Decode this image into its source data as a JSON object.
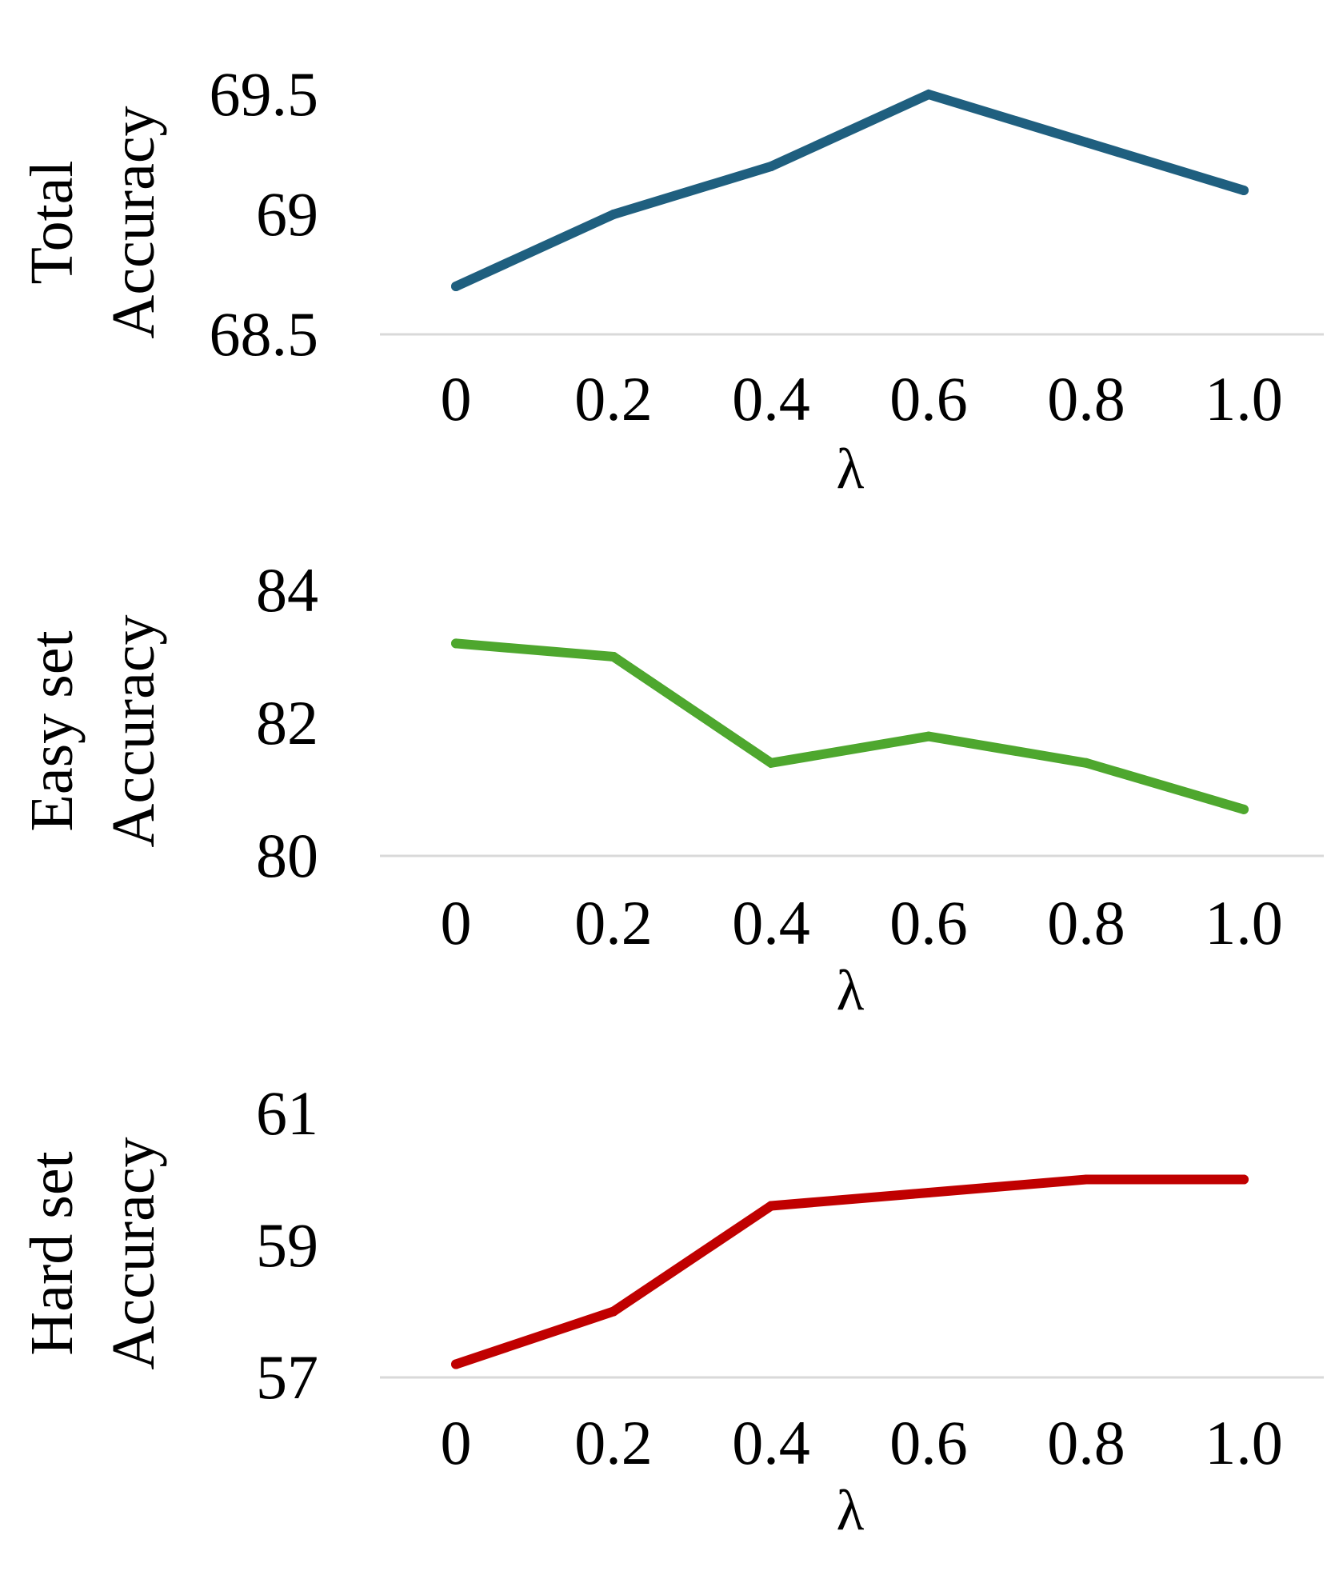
{
  "chart_data": [
    {
      "type": "line",
      "ylabel_lines": [
        "Total",
        "Accuracy"
      ],
      "xlabel": "λ",
      "categories": [
        "0",
        "0.2",
        "0.4",
        "0.6",
        "0.8",
        "1.0"
      ],
      "values": [
        68.7,
        69.0,
        69.2,
        69.5,
        69.3,
        69.1
      ],
      "yticks": [
        "68.5",
        "69",
        "69.5"
      ],
      "ylim": [
        68.5,
        69.5
      ],
      "color": "#1f5f7f"
    },
    {
      "type": "line",
      "ylabel_lines": [
        "Easy set",
        "Accuracy"
      ],
      "xlabel": "λ",
      "categories": [
        "0",
        "0.2",
        "0.4",
        "0.6",
        "0.8",
        "1.0"
      ],
      "values": [
        83.2,
        83.0,
        81.4,
        81.8,
        81.4,
        80.7
      ],
      "yticks": [
        "80",
        "82",
        "84"
      ],
      "ylim": [
        80,
        84
      ],
      "color": "#4ea72e"
    },
    {
      "type": "line",
      "ylabel_lines": [
        "Hard set",
        "Accuracy"
      ],
      "xlabel": "λ",
      "categories": [
        "0",
        "0.2",
        "0.4",
        "0.6",
        "0.8",
        "1.0"
      ],
      "values": [
        57.2,
        58.0,
        59.6,
        59.8,
        60.0,
        60.0
      ],
      "yticks": [
        "57",
        "59",
        "61"
      ],
      "ylim": [
        57,
        61
      ],
      "color": "#c00000"
    }
  ]
}
